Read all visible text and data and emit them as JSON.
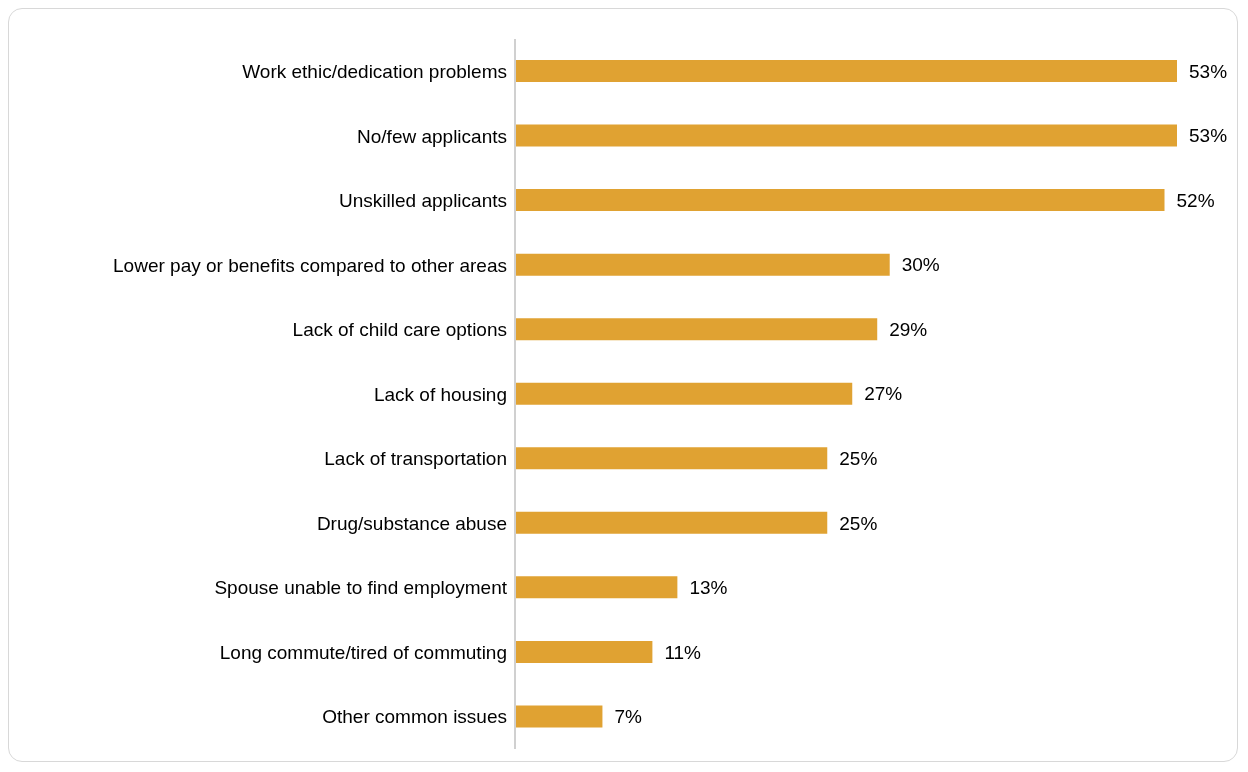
{
  "chart_data": {
    "type": "bar",
    "orientation": "horizontal",
    "categories": [
      "Work ethic/dedication problems",
      "No/few applicants",
      "Unskilled applicants",
      "Lower pay or benefits compared to other areas",
      "Lack of child care options",
      "Lack of housing",
      "Lack of transportation",
      "Drug/substance abuse",
      "Spouse unable to find employment",
      "Long commute/tired of commuting",
      "Other common issues"
    ],
    "values": [
      53,
      53,
      52,
      30,
      29,
      27,
      25,
      25,
      13,
      11,
      7
    ],
    "value_labels": [
      "53%",
      "53%",
      "52%",
      "30%",
      "29%",
      "27%",
      "25%",
      "25%",
      "13%",
      "11%",
      "7%"
    ],
    "color": "#e0a232"
  }
}
